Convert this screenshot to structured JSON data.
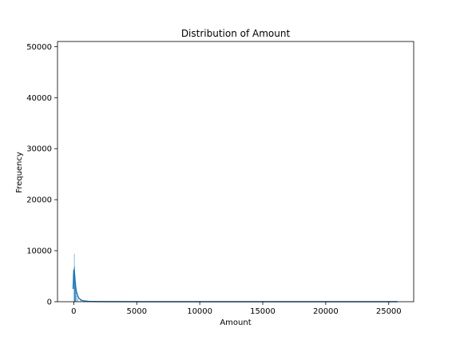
{
  "chart_data": {
    "type": "histogram",
    "title": "Distribution of Amount",
    "xlabel": "Amount",
    "ylabel": "Frequency",
    "xlim": [
      -1290,
      26980
    ],
    "ylim": [
      0,
      51000
    ],
    "xticks": [
      0,
      5000,
      10000,
      15000,
      20000,
      25000
    ],
    "yticks": [
      0,
      10000,
      20000,
      30000,
      40000,
      50000
    ],
    "grid": false,
    "legend": "none",
    "color": "#1f77b4",
    "bins": [
      {
        "x": 0,
        "count": 6700
      },
      {
        "x": 20,
        "count": 9400
      },
      {
        "x": 40,
        "count": 7000
      },
      {
        "x": 60,
        "count": 5200
      },
      {
        "x": 80,
        "count": 3800
      },
      {
        "x": 100,
        "count": 2900
      },
      {
        "x": 140,
        "count": 1900
      },
      {
        "x": 200,
        "count": 1100
      },
      {
        "x": 300,
        "count": 600
      },
      {
        "x": 500,
        "count": 250
      },
      {
        "x": 1000,
        "count": 80
      },
      {
        "x": 2000,
        "count": 20
      }
    ],
    "kde": {
      "x": [
        -50,
        0,
        30,
        60,
        100,
        150,
        200,
        300,
        400,
        600,
        800,
        1200,
        2000,
        5000,
        10000,
        15000,
        20000,
        25700
      ],
      "y": [
        2500,
        6100,
        6300,
        5500,
        4300,
        3000,
        2100,
        1200,
        700,
        300,
        150,
        60,
        20,
        0,
        0,
        0,
        0,
        0
      ]
    }
  }
}
